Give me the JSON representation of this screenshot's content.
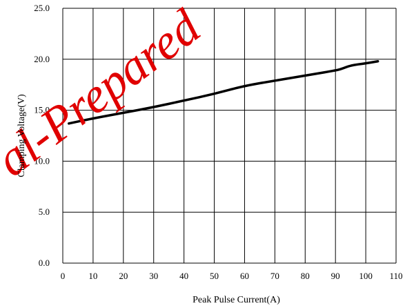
{
  "chart_data": {
    "type": "line",
    "title": "",
    "xlabel": "Peak Pulse Current(A)",
    "ylabel": "Clamping Voltage(V)",
    "xlim": [
      0,
      110
    ],
    "ylim": [
      0,
      25
    ],
    "xticks": [
      0,
      10,
      20,
      30,
      40,
      50,
      60,
      70,
      80,
      90,
      100,
      110
    ],
    "yticks": [
      "0.0",
      "5.0",
      "10.0",
      "15.0",
      "20.0",
      "25.0"
    ],
    "grid": true,
    "series": [
      {
        "color": "#000000",
        "points": [
          [
            2,
            13.7
          ],
          [
            10,
            14.2
          ],
          [
            20,
            14.75
          ],
          [
            30,
            15.3
          ],
          [
            40,
            15.95
          ],
          [
            50,
            16.6
          ],
          [
            60,
            17.4
          ],
          [
            70,
            17.9
          ],
          [
            80,
            18.4
          ],
          [
            90,
            18.9
          ],
          [
            92,
            19.05
          ],
          [
            95,
            19.4
          ],
          [
            100,
            19.6
          ],
          [
            104,
            19.8
          ]
        ]
      }
    ]
  },
  "watermark": {
    "text": "al-Prepared",
    "color": "#e00000"
  }
}
